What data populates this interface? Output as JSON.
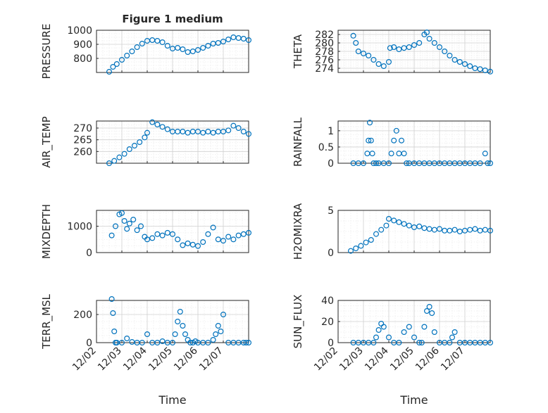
{
  "chart_data": [
    {
      "type": "scatter",
      "title": "Figure 1 medium",
      "ylabel": "PRESSURE",
      "ylim": [
        700,
        1000
      ],
      "yticks": [
        800,
        900,
        1000
      ],
      "xticklabels": [],
      "x": [
        0.5,
        0.65,
        0.8,
        1.0,
        1.2,
        1.4,
        1.6,
        1.8,
        2.0,
        2.2,
        2.4,
        2.6,
        2.8,
        3.0,
        3.2,
        3.4,
        3.6,
        3.8,
        4.0,
        4.2,
        4.4,
        4.6,
        4.8,
        5.0,
        5.2,
        5.4,
        5.6,
        5.8,
        6.0
      ],
      "y": [
        705,
        740,
        760,
        790,
        820,
        850,
        880,
        905,
        925,
        930,
        925,
        915,
        890,
        870,
        875,
        865,
        845,
        850,
        860,
        875,
        890,
        905,
        910,
        920,
        935,
        950,
        945,
        940,
        930
      ]
    },
    {
      "type": "scatter",
      "title": "",
      "ylabel": "THETA",
      "ylim": [
        273,
        283
      ],
      "yticks": [
        274,
        276,
        278,
        280,
        282
      ],
      "xticklabels": [],
      "x": [
        0.6,
        0.7,
        0.8,
        1.0,
        1.2,
        1.4,
        1.6,
        1.8,
        2.0,
        2.05,
        2.2,
        2.4,
        2.6,
        2.8,
        3.0,
        3.2,
        3.4,
        3.5,
        3.6,
        3.8,
        4.0,
        4.2,
        4.4,
        4.6,
        4.8,
        5.0,
        5.2,
        5.4,
        5.6,
        5.8,
        6.0
      ],
      "y": [
        281.7,
        280,
        278,
        277.5,
        277,
        276,
        275,
        274.5,
        275.5,
        278.8,
        279,
        278.5,
        278.8,
        279,
        279.5,
        280,
        282,
        282.5,
        281,
        280,
        279,
        278,
        277,
        276,
        275.5,
        275,
        274.5,
        274,
        273.8,
        273.5,
        273.2
      ]
    },
    {
      "type": "scatter",
      "title": "",
      "ylabel": "AIR_TEMP",
      "ylim": [
        255,
        273
      ],
      "yticks": [
        260,
        265,
        270
      ],
      "xticklabels": [],
      "x": [
        0.5,
        0.7,
        0.9,
        1.1,
        1.3,
        1.5,
        1.7,
        1.9,
        2.0,
        2.2,
        2.4,
        2.6,
        2.8,
        3.0,
        3.2,
        3.4,
        3.6,
        3.8,
        4.0,
        4.2,
        4.4,
        4.6,
        4.8,
        5.0,
        5.2,
        5.4,
        5.6,
        5.8,
        6.0
      ],
      "y": [
        255,
        256,
        257.5,
        259,
        261,
        262.5,
        264,
        266,
        268,
        272.5,
        271.5,
        270.5,
        269.5,
        268.5,
        268.5,
        268.5,
        268,
        268.5,
        268.5,
        268,
        268.5,
        268,
        268.5,
        268.5,
        269,
        271,
        270,
        268.5,
        267.5
      ]
    },
    {
      "type": "scatter",
      "title": "",
      "ylabel": "RAINFALL",
      "ylim": [
        0,
        1.3
      ],
      "yticks": [
        0,
        0.5,
        1
      ],
      "xticklabels": [],
      "x": [
        0.6,
        0.8,
        1.0,
        1.15,
        1.2,
        1.25,
        1.3,
        1.35,
        1.4,
        1.5,
        1.6,
        1.8,
        2.0,
        2.1,
        2.2,
        2.3,
        2.4,
        2.5,
        2.6,
        2.7,
        2.8,
        3.0,
        3.2,
        3.4,
        3.6,
        3.8,
        4.0,
        4.2,
        4.4,
        4.6,
        4.8,
        5.0,
        5.2,
        5.4,
        5.6,
        5.8,
        5.9,
        6.0
      ],
      "y": [
        0,
        0,
        0,
        0.3,
        0.7,
        1.25,
        0.7,
        0.3,
        0,
        0,
        0,
        0,
        0,
        0.3,
        0.7,
        1.0,
        0.3,
        0.7,
        0.3,
        0,
        0,
        0,
        0,
        0,
        0,
        0,
        0,
        0,
        0,
        0,
        0,
        0,
        0,
        0,
        0,
        0.3,
        0,
        0
      ]
    },
    {
      "type": "scatter",
      "title": "",
      "ylabel": "MIXDEPTH",
      "ylim": [
        0,
        1600
      ],
      "yticks": [
        0,
        1000
      ],
      "xticklabels": [],
      "x": [
        0.6,
        0.75,
        0.9,
        1.0,
        1.1,
        1.2,
        1.3,
        1.45,
        1.6,
        1.75,
        1.9,
        2.0,
        2.2,
        2.4,
        2.6,
        2.8,
        3.0,
        3.2,
        3.4,
        3.6,
        3.8,
        4.0,
        4.2,
        4.4,
        4.6,
        4.8,
        5.0,
        5.2,
        5.4,
        5.6,
        5.8,
        6.0
      ],
      "y": [
        650,
        1000,
        1450,
        1500,
        1200,
        900,
        1100,
        1250,
        850,
        1000,
        600,
        500,
        550,
        700,
        650,
        750,
        700,
        500,
        280,
        350,
        300,
        250,
        400,
        700,
        950,
        500,
        450,
        600,
        500,
        650,
        700,
        750
      ]
    },
    {
      "type": "scatter",
      "title": "",
      "ylabel": "H2OMIXRA",
      "ylim": [
        0,
        5
      ],
      "yticks": [
        0,
        5
      ],
      "xticklabels": [],
      "x": [
        0.5,
        0.7,
        0.9,
        1.1,
        1.3,
        1.5,
        1.7,
        1.9,
        2.0,
        2.2,
        2.4,
        2.6,
        2.8,
        3.0,
        3.2,
        3.4,
        3.6,
        3.8,
        4.0,
        4.2,
        4.4,
        4.6,
        4.8,
        5.0,
        5.2,
        5.4,
        5.6,
        5.8,
        6.0
      ],
      "y": [
        0.2,
        0.5,
        0.8,
        1.2,
        1.5,
        2.2,
        2.7,
        3.2,
        4.0,
        3.8,
        3.6,
        3.4,
        3.2,
        3.0,
        3.1,
        2.9,
        2.8,
        2.7,
        2.8,
        2.6,
        2.6,
        2.7,
        2.5,
        2.6,
        2.7,
        2.8,
        2.6,
        2.7,
        2.6
      ]
    },
    {
      "type": "scatter",
      "title": "",
      "ylabel": "TERR_MSL",
      "ylim": [
        0,
        300
      ],
      "yticks": [
        0,
        200
      ],
      "xlabel": "Time",
      "xticklabels": [
        "12/02",
        "12/03",
        "12/04",
        "12/05",
        "12/06",
        "12/07"
      ],
      "x": [
        0.6,
        0.65,
        0.7,
        0.75,
        0.8,
        1.0,
        1.2,
        1.4,
        1.6,
        1.8,
        2.0,
        2.2,
        2.4,
        2.6,
        2.8,
        3.0,
        3.1,
        3.2,
        3.3,
        3.4,
        3.5,
        3.6,
        3.7,
        3.8,
        3.9,
        4.0,
        4.2,
        4.4,
        4.6,
        4.7,
        4.8,
        4.9,
        5.0,
        5.2,
        5.4,
        5.6,
        5.8,
        5.9,
        6.0
      ],
      "y": [
        310,
        210,
        80,
        0,
        0,
        0,
        30,
        5,
        0,
        0,
        60,
        0,
        0,
        10,
        0,
        0,
        60,
        150,
        220,
        120,
        60,
        20,
        0,
        0,
        10,
        0,
        0,
        0,
        20,
        60,
        120,
        80,
        200,
        0,
        0,
        0,
        0,
        0,
        0
      ]
    },
    {
      "type": "scatter",
      "title": "",
      "ylabel": "SUN_FLUX",
      "ylim": [
        0,
        40
      ],
      "yticks": [
        0,
        20,
        40
      ],
      "xlabel": "Time",
      "xticklabels": [
        "12/02",
        "12/03",
        "12/04",
        "12/05",
        "12/06",
        "12/07"
      ],
      "x": [
        0.6,
        0.8,
        1.0,
        1.2,
        1.4,
        1.5,
        1.6,
        1.7,
        1.8,
        2.0,
        2.2,
        2.4,
        2.6,
        2.8,
        3.0,
        3.2,
        3.3,
        3.4,
        3.5,
        3.6,
        3.7,
        3.8,
        4.0,
        4.2,
        4.4,
        4.5,
        4.6,
        4.8,
        5.0,
        5.2,
        5.4,
        5.6,
        5.8,
        6.0
      ],
      "y": [
        0,
        0,
        0,
        0,
        0,
        5,
        12,
        18,
        15,
        5,
        0,
        0,
        10,
        15,
        5,
        0,
        0,
        15,
        30,
        34,
        28,
        10,
        0,
        0,
        0,
        5,
        10,
        0,
        0,
        0,
        0,
        0,
        0,
        0
      ]
    }
  ]
}
